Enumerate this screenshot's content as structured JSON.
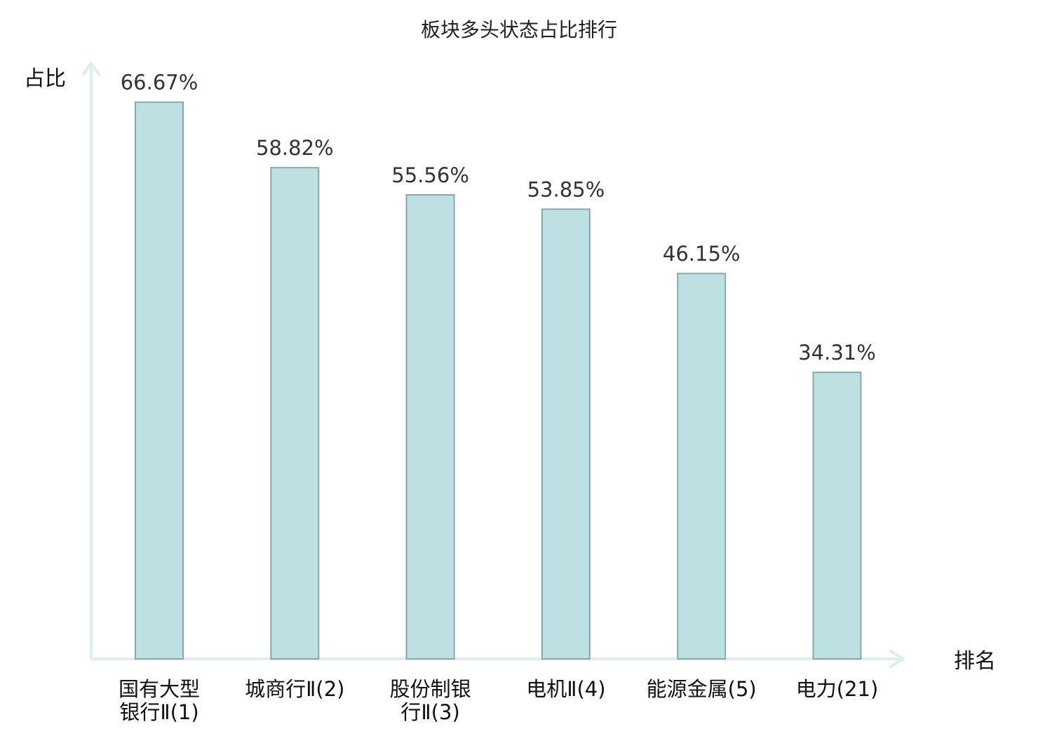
{
  "chart_data": {
    "type": "bar",
    "title": "板块多头状态占比排行",
    "xlabel": "排名",
    "ylabel": "占比",
    "ylim": [
      0,
      70
    ],
    "grid": false,
    "categories": [
      [
        "国有大型",
        "银行Ⅱ(1)"
      ],
      [
        "城商行Ⅱ(2)"
      ],
      [
        "股份制银",
        "行Ⅱ(3)"
      ],
      [
        "电机Ⅱ(4)"
      ],
      [
        "能源金属(5)"
      ],
      [
        "电力(21)"
      ]
    ],
    "values": [
      66.67,
      58.82,
      55.56,
      53.85,
      46.15,
      34.31
    ],
    "value_labels": [
      "66.67%",
      "58.82%",
      "55.56%",
      "53.85%",
      "46.15%",
      "34.31%"
    ],
    "highlight_index": 5,
    "colors": {
      "bar_fill": "#bde0e3",
      "bar_stroke": "#8aa6a9",
      "axis": "#dcefee",
      "highlight_text": "#e31b1b",
      "label_text": "#111111",
      "value_text": "#333333"
    }
  }
}
